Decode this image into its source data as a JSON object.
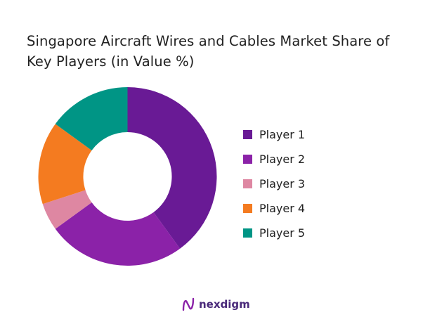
{
  "chart_data": {
    "type": "pie",
    "donut": true,
    "title": "Singapore Aircraft Wires and Cables Market Share of Key Players (in Value %)",
    "categories": [
      "Player 1",
      "Player 2",
      "Player 3",
      "Player 4",
      "Player 5"
    ],
    "values": [
      40,
      25,
      5,
      15,
      15
    ],
    "colors": [
      "#691a95",
      "#8b22a8",
      "#de87a2",
      "#f47b20",
      "#009585"
    ],
    "legend_position": "right"
  },
  "logo": {
    "text": "nexdigm"
  }
}
